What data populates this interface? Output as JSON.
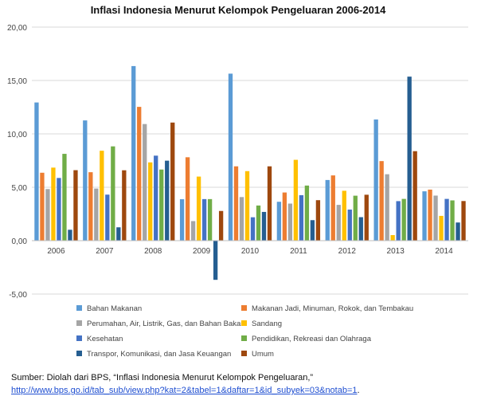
{
  "chart_data": {
    "type": "bar",
    "title": "Inflasi Indonesia Menurut Kelompok Pengeluaran 2006-2014",
    "categories": [
      "2006",
      "2007",
      "2008",
      "2009",
      "2010",
      "2011",
      "2012",
      "2013",
      "2014"
    ],
    "ylim": [
      -5,
      20
    ],
    "yticks": [
      "-5,00",
      "0,00",
      "5,00",
      "10,00",
      "15,00",
      "20,00"
    ],
    "ytick_values": [
      -5,
      0,
      5,
      10,
      15,
      20
    ],
    "grid": true,
    "legend_position": "bottom",
    "series": [
      {
        "name": "Bahan Makanan",
        "color": "#5b9bd5",
        "values": [
          12.94,
          11.26,
          16.35,
          3.88,
          15.64,
          3.64,
          5.68,
          11.35,
          4.62
        ]
      },
      {
        "name": "Makanan Jadi, Minuman, Rokok, dan Tembakau",
        "color": "#ed7d31",
        "values": [
          6.36,
          6.41,
          12.53,
          7.81,
          6.96,
          4.51,
          6.11,
          7.45,
          4.78
        ]
      },
      {
        "name": "Perumahan, Air, Listrik, Gas, dan Bahan Bakar",
        "color": "#a5a5a5",
        "values": [
          4.83,
          4.88,
          10.92,
          1.83,
          4.08,
          3.47,
          3.35,
          6.22,
          4.22
        ]
      },
      {
        "name": "Sandang",
        "color": "#ffc000",
        "values": [
          6.84,
          8.42,
          7.33,
          6.0,
          6.51,
          7.57,
          4.67,
          0.52,
          2.32
        ]
      },
      {
        "name": "Kesehatan",
        "color": "#4472c4",
        "values": [
          5.87,
          4.31,
          7.96,
          3.89,
          2.19,
          4.26,
          2.91,
          3.7,
          3.91
        ]
      },
      {
        "name": "Pendidikan, Rekreasi dan Olahraga",
        "color": "#70ad47",
        "values": [
          8.13,
          8.83,
          6.66,
          3.89,
          3.29,
          5.16,
          4.21,
          3.91,
          3.77
        ]
      },
      {
        "name": "Transpor, Komunikasi, dan Jasa Keuangan",
        "color": "#255e91",
        "values": [
          1.02,
          1.25,
          7.49,
          -3.67,
          2.69,
          1.92,
          2.2,
          15.36,
          1.7
        ]
      },
      {
        "name": "Umum",
        "color": "#9e480e",
        "values": [
          6.6,
          6.59,
          11.06,
          2.78,
          6.96,
          3.79,
          4.3,
          8.38,
          3.71
        ]
      }
    ]
  },
  "source": {
    "line1": "Sumber: Diolah dari BPS, “Inflasi Indonesia Menurut Kelompok Pengeluaran,”",
    "url": "http://www.bps.go.id/tab_sub/view.php?kat=2&tabel=1&daftar=1&id_subyek=03&notab=1",
    "trail": "."
  }
}
